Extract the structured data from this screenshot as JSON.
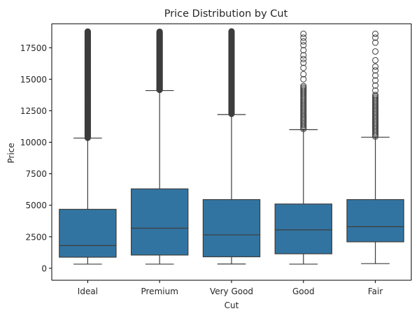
{
  "chart_data": {
    "type": "box",
    "title": "Price Distribution by Cut",
    "xlabel": "Cut",
    "ylabel": "Price",
    "ylim": [
      -950,
      19400
    ],
    "yticks": [
      0,
      2500,
      5000,
      7500,
      10000,
      12500,
      15000,
      17500
    ],
    "ytick_labels": [
      "0",
      "2500",
      "5000",
      "7500",
      "10000",
      "12500",
      "15000",
      "17500"
    ],
    "grid": false,
    "box_color": "#3274a1",
    "line_color": "#3d3d3d",
    "categories": [
      "Ideal",
      "Premium",
      "Very Good",
      "Good",
      "Fair"
    ],
    "boxes": [
      {
        "category": "Ideal",
        "whisker_low": 330,
        "q1": 880,
        "median": 1800,
        "q3": 4680,
        "whisker_high": 10330,
        "outlier_range": [
          10350,
          18800
        ],
        "outlier_density": "dense",
        "outliers": []
      },
      {
        "category": "Premium",
        "whisker_low": 330,
        "q1": 1050,
        "median": 3180,
        "q3": 6300,
        "whisker_high": 14100,
        "outlier_range": [
          14150,
          18800
        ],
        "outlier_density": "dense",
        "outliers": []
      },
      {
        "category": "Very Good",
        "whisker_low": 340,
        "q1": 910,
        "median": 2650,
        "q3": 5450,
        "whisker_high": 12200,
        "outlier_range": [
          12250,
          18800
        ],
        "outlier_density": "dense",
        "outliers": []
      },
      {
        "category": "Good",
        "whisker_low": 330,
        "q1": 1150,
        "median": 3050,
        "q3": 5100,
        "whisker_high": 11000,
        "outlier_range": [
          11050,
          14500
        ],
        "outlier_density": "medium",
        "outliers": [
          15000,
          15400,
          15900,
          16300,
          16600,
          16900,
          17300,
          17700,
          18000,
          18300,
          18600
        ]
      },
      {
        "category": "Fair",
        "whisker_low": 370,
        "q1": 2100,
        "median": 3300,
        "q3": 5450,
        "whisker_high": 10400,
        "outlier_range": [
          10450,
          13800
        ],
        "outlier_density": "medium",
        "outliers": [
          14100,
          14500,
          14900,
          15300,
          15700,
          16000,
          16500,
          17200,
          17900,
          18300,
          18600
        ]
      }
    ]
  }
}
